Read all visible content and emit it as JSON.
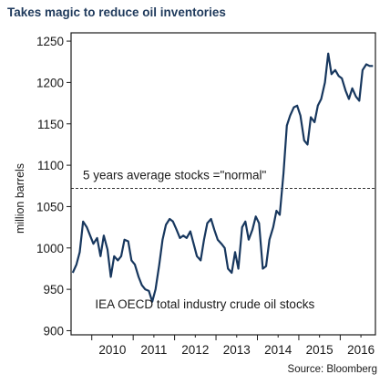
{
  "chart_data": {
    "type": "line",
    "title": "Takes magic to reduce oil inventories",
    "ylabel": "million barrels",
    "xlabel": "",
    "source": "Source: Bloomberg",
    "ylim": [
      895,
      1260
    ],
    "xlim": [
      2009.5,
      2016.85
    ],
    "yticks": [
      900,
      950,
      1000,
      1050,
      1100,
      1150,
      1200,
      1250
    ],
    "xtick_labels": [
      "2010",
      "2011",
      "2012",
      "2013",
      "2014",
      "2015",
      "2016"
    ],
    "grid": false,
    "reference_line": {
      "value": 1072,
      "label": "5 years average stocks =\"normal\"",
      "style": "dashed"
    },
    "series": [
      {
        "name": "IEA OECD total industry crude oil stocks",
        "color": "#17375e",
        "x": [
          2009.54,
          2009.63,
          2009.71,
          2009.79,
          2009.88,
          2009.96,
          2010.04,
          2010.13,
          2010.21,
          2010.29,
          2010.38,
          2010.46,
          2010.54,
          2010.63,
          2010.71,
          2010.79,
          2010.88,
          2010.96,
          2011.04,
          2011.13,
          2011.21,
          2011.29,
          2011.38,
          2011.46,
          2011.54,
          2011.63,
          2011.71,
          2011.79,
          2011.88,
          2011.96,
          2012.04,
          2012.13,
          2012.21,
          2012.29,
          2012.38,
          2012.46,
          2012.54,
          2012.63,
          2012.71,
          2012.79,
          2012.88,
          2012.96,
          2013.04,
          2013.13,
          2013.21,
          2013.29,
          2013.38,
          2013.46,
          2013.54,
          2013.63,
          2013.71,
          2013.79,
          2013.88,
          2013.96,
          2014.04,
          2014.13,
          2014.21,
          2014.29,
          2014.38,
          2014.46,
          2014.54,
          2014.63,
          2014.71,
          2014.79,
          2014.88,
          2014.96,
          2015.04,
          2015.13,
          2015.21,
          2015.29,
          2015.38,
          2015.46,
          2015.54,
          2015.63,
          2015.71,
          2015.79,
          2015.88,
          2015.96,
          2016.04,
          2016.13,
          2016.21,
          2016.29,
          2016.38,
          2016.46,
          2016.54,
          2016.63,
          2016.71,
          2016.79
        ],
        "values": [
          970,
          980,
          995,
          1032,
          1025,
          1015,
          1005,
          1012,
          990,
          1015,
          998,
          965,
          990,
          985,
          990,
          1010,
          1008,
          985,
          980,
          965,
          955,
          950,
          948,
          935,
          950,
          980,
          1010,
          1028,
          1035,
          1032,
          1023,
          1012,
          1015,
          1012,
          1020,
          1005,
          990,
          985,
          1010,
          1030,
          1035,
          1022,
          1010,
          1005,
          1000,
          975,
          970,
          995,
          975,
          1025,
          1032,
          1010,
          1022,
          1038,
          1030,
          975,
          978,
          1010,
          1025,
          1045,
          1040,
          1090,
          1148,
          1160,
          1170,
          1172,
          1160,
          1130,
          1125,
          1158,
          1152,
          1172,
          1180,
          1200,
          1235,
          1210,
          1215,
          1208,
          1205,
          1190,
          1180,
          1193,
          1183,
          1178,
          1215,
          1222,
          1220,
          1220
        ]
      }
    ],
    "annotations": [
      {
        "text": "IEA OECD total industry crude oil stocks"
      }
    ]
  }
}
